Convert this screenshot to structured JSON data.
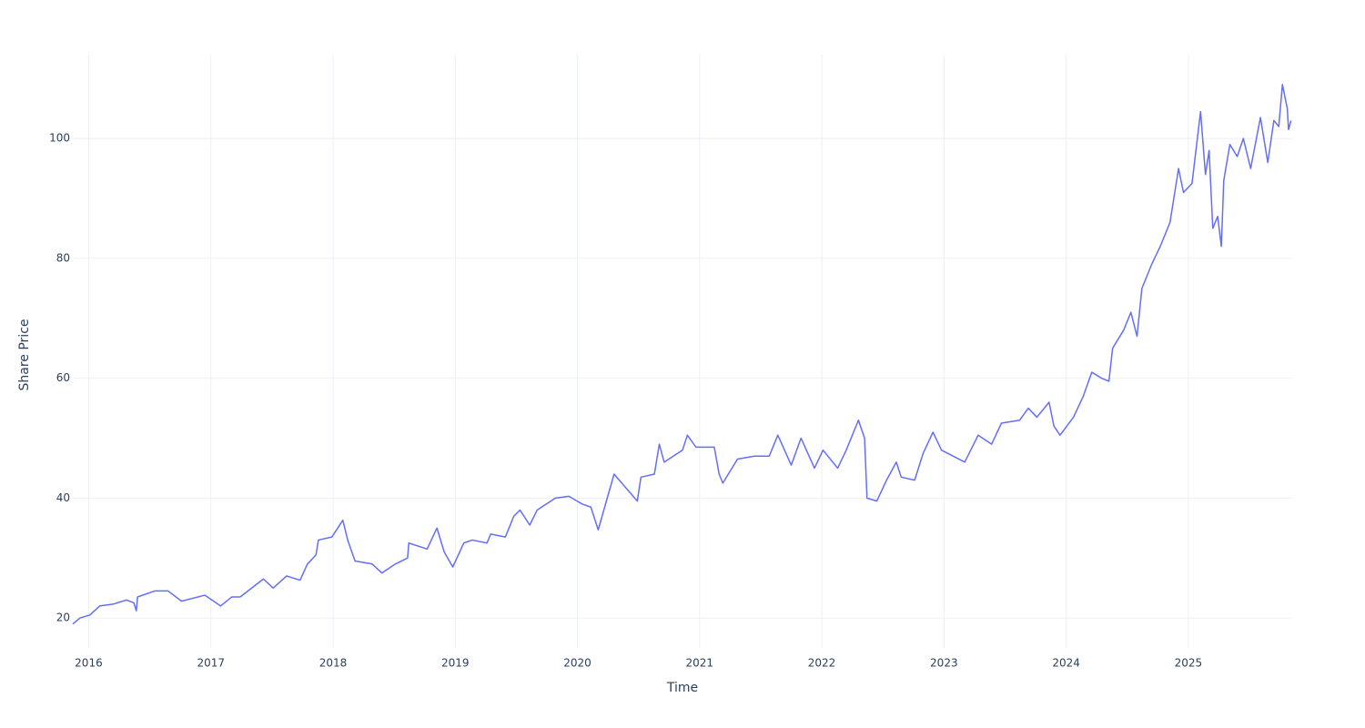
{
  "chart_data": {
    "type": "line",
    "x_label": "Time",
    "y_label": "Share Price",
    "x": [
      2015.87,
      2015.93,
      2016.01,
      2016.09,
      2016.2,
      2016.31,
      2016.37,
      2016.39,
      2016.4,
      2016.54,
      2016.65,
      2016.76,
      2016.95,
      2017.08,
      2017.17,
      2017.24,
      2017.43,
      2017.51,
      2017.62,
      2017.73,
      2017.79,
      2017.86,
      2017.88,
      2017.99,
      2018.08,
      2018.12,
      2018.18,
      2018.32,
      2018.4,
      2018.51,
      2018.61,
      2018.62,
      2018.77,
      2018.85,
      2018.91,
      2018.98,
      2019.07,
      2019.14,
      2019.26,
      2019.29,
      2019.41,
      2019.48,
      2019.53,
      2019.61,
      2019.67,
      2019.82,
      2019.93,
      2020.04,
      2020.11,
      2020.17,
      2020.3,
      2020.49,
      2020.52,
      2020.63,
      2020.67,
      2020.71,
      2020.86,
      2020.9,
      2020.97,
      2021.12,
      2021.16,
      2021.19,
      2021.31,
      2021.45,
      2021.57,
      2021.64,
      2021.75,
      2021.83,
      2021.94,
      2022.01,
      2022.13,
      2022.2,
      2022.3,
      2022.35,
      2022.37,
      2022.45,
      2022.53,
      2022.61,
      2022.65,
      2022.76,
      2022.83,
      2022.91,
      2022.98,
      2023.17,
      2023.28,
      2023.39,
      2023.47,
      2023.62,
      2023.69,
      2023.76,
      2023.86,
      2023.9,
      2023.95,
      2024.06,
      2024.14,
      2024.21,
      2024.29,
      2024.35,
      2024.38,
      2024.47,
      2024.53,
      2024.58,
      2024.62,
      2024.7,
      2024.77,
      2024.85,
      2024.92,
      2024.96,
      2025.03,
      2025.1,
      2025.14,
      2025.17,
      2025.2,
      2025.24,
      2025.27,
      2025.29,
      2025.34,
      2025.4,
      2025.45,
      2025.51,
      2025.59,
      2025.65,
      2025.7,
      2025.74,
      2025.77,
      2025.81,
      2025.82,
      2025.84
    ],
    "values": [
      19,
      20,
      20.5,
      22,
      22.3,
      23,
      22.5,
      21.2,
      23.5,
      24.5,
      24.5,
      22.8,
      23.8,
      22,
      23.5,
      23.5,
      26.5,
      25,
      27,
      26.3,
      29,
      30.5,
      33,
      33.5,
      36.3,
      33,
      29.5,
      29,
      27.5,
      29,
      30,
      32.5,
      31.5,
      35,
      31,
      28.5,
      32.5,
      33,
      32.5,
      34,
      33.5,
      37,
      38,
      35.5,
      38,
      40,
      40.3,
      39,
      38.5,
      34.7,
      44,
      39.5,
      43.5,
      44,
      49,
      46,
      48,
      50.5,
      48.5,
      48.5,
      44,
      42.5,
      46.5,
      47,
      47,
      50.5,
      45.5,
      50,
      45,
      48,
      45,
      48,
      53,
      50,
      40,
      39.5,
      43,
      46,
      43.5,
      43,
      47.5,
      51,
      48,
      46,
      50.5,
      49,
      52.5,
      53,
      55,
      53.5,
      56,
      52,
      50.5,
      53.5,
      57,
      61,
      60,
      59.5,
      65,
      68,
      71,
      67,
      75,
      79,
      82,
      86,
      95,
      91,
      92.5,
      104.5,
      94,
      98,
      85,
      87,
      82,
      93,
      99,
      97,
      100,
      95,
      103.5,
      96,
      103,
      102,
      109,
      105,
      101.5,
      103
    ],
    "color": "#636efa",
    "xlim": [
      2015.87,
      2025.85
    ],
    "xticks": [
      2016,
      2017,
      2018,
      2019,
      2020,
      2021,
      2022,
      2023,
      2024,
      2025
    ],
    "ylim": [
      15,
      114
    ],
    "yticks": [
      20,
      40,
      60,
      80,
      100
    ],
    "grid": true
  }
}
